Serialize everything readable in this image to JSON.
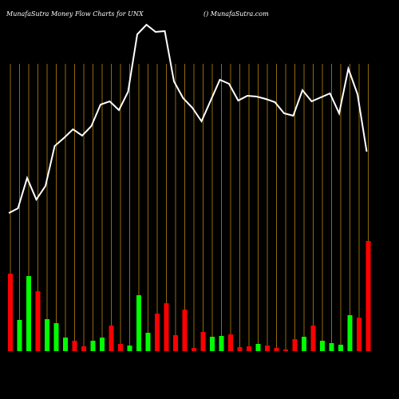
{
  "chart_data": {
    "type": "bar",
    "title": "MunafaSutra  Money Flow  Charts for UNX",
    "subtitle": "() MunafaSutra.com",
    "categories": [
      null,
      null,
      null,
      null,
      null,
      null,
      null,
      null,
      null,
      null,
      null,
      null,
      null,
      null,
      null,
      null,
      null,
      null,
      null,
      null,
      null,
      null,
      null,
      null,
      null,
      null,
      null,
      null,
      null,
      null,
      null,
      null,
      null,
      null,
      null,
      null,
      null,
      null,
      null,
      null
    ],
    "values": [
      97,
      39,
      94,
      75,
      40,
      35,
      17,
      13,
      6,
      13,
      17,
      32,
      9,
      7,
      70,
      23,
      47,
      60,
      20,
      52,
      4,
      24,
      18,
      19,
      21,
      5,
      6,
      9,
      7,
      4,
      2,
      15,
      18,
      32,
      13,
      10,
      8,
      45,
      42,
      138
    ],
    "colors": [
      "#ff0000",
      "#00ff00",
      "#00ff00",
      "#ff0000",
      "#00ff00",
      "#00ff00",
      "#00ff00",
      "#ff0000",
      "#ff0000",
      "#00ff00",
      "#00ff00",
      "#ff0000",
      "#ff0000",
      "#00ff00",
      "#00ff00",
      "#00ff00",
      "#ff0000",
      "#ff0000",
      "#ff0000",
      "#ff0000",
      "#ff0000",
      "#ff0000",
      "#00ff00",
      "#00ff00",
      "#ff0000",
      "#ff0000",
      "#ff0000",
      "#00ff00",
      "#ff0000",
      "#ff0000",
      "#ff0000",
      "#ff0000",
      "#00ff00",
      "#ff0000",
      "#00ff00",
      "#00ff00",
      "#00ff00",
      "#00ff00",
      "#ff0000",
      "#ff0000"
    ],
    "line": {
      "color": "#ffffff",
      "values": [
        173,
        179,
        217,
        190,
        207,
        257,
        267,
        278,
        270,
        282,
        309,
        313,
        302,
        325,
        397,
        409,
        400,
        401,
        338,
        317,
        305,
        288,
        314,
        340,
        335,
        314,
        320,
        319,
        316,
        312,
        298,
        295,
        327,
        313,
        318,
        323,
        298,
        354,
        322,
        250
      ]
    },
    "ylim": [
      0,
      440
    ],
    "gridline_color": "#b8860b"
  }
}
